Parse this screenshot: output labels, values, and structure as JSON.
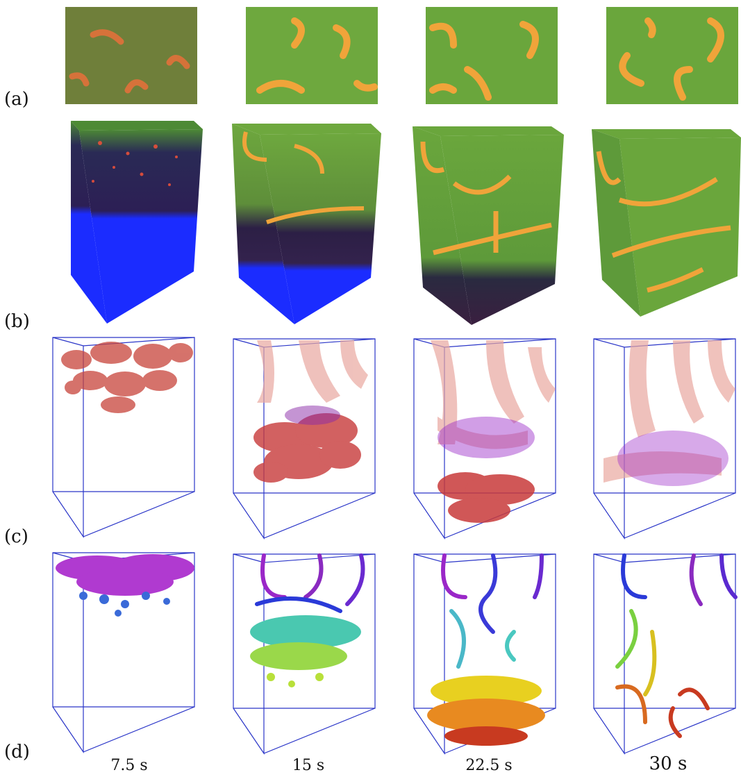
{
  "figure": {
    "row_labels": [
      "(a)",
      "(b)",
      "(c)",
      "(d)"
    ],
    "time_labels": [
      "7.5 s",
      "15 s",
      "22.5 s",
      "30 s"
    ]
  },
  "colors": {
    "green": "#5f9a3a",
    "orange": "#f0a43a",
    "red": "#d9342b",
    "blue": "#1b2cff",
    "purple": "#9a27c8",
    "frame": "#2a35c8"
  }
}
